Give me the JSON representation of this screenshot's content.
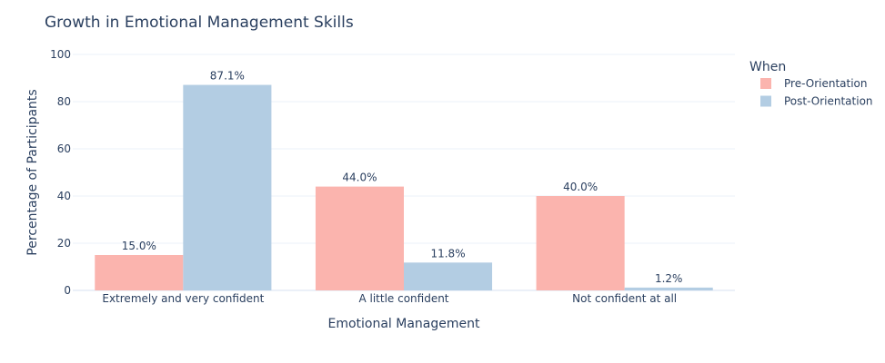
{
  "chart_data": {
    "type": "bar",
    "title": "Growth in Emotional Management Skills",
    "xlabel": "Emotional Management",
    "ylabel": "Percentage of Participants",
    "ylim": [
      0,
      100
    ],
    "yticks": [
      0,
      20,
      40,
      60,
      80,
      100
    ],
    "grid": true,
    "legend": {
      "title": "When",
      "placement": "top-right"
    },
    "categories": [
      "Extremely and very confident",
      "A little confident",
      "Not confident at all"
    ],
    "series": [
      {
        "name": "Pre-Orientation",
        "color": "#fbb4ae",
        "values": [
          15.0,
          44.0,
          40.0
        ],
        "labels": [
          "15.0%",
          "44.0%",
          "40.0%"
        ]
      },
      {
        "name": "Post-Orientation",
        "color": "#b3cde3",
        "values": [
          87.1,
          11.8,
          1.2
        ],
        "labels": [
          "87.1%",
          "11.8%",
          "1.2%"
        ]
      }
    ]
  }
}
